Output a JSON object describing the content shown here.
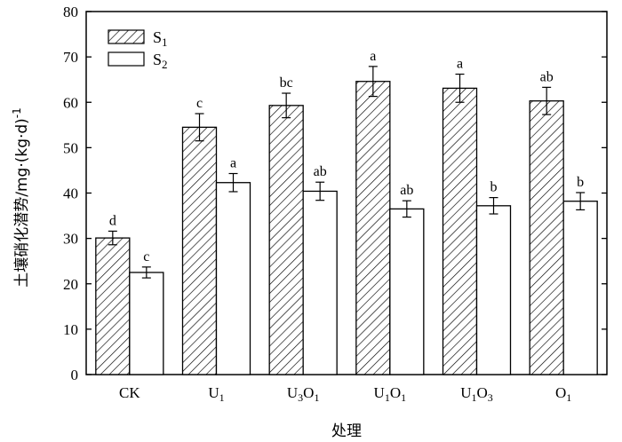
{
  "chart_data": {
    "type": "bar",
    "xlabel": "处理",
    "ylabel": "土壤硝化潜势/mg·(kg·d)",
    "ylabel_superscript": "-1",
    "ylim": [
      0,
      80
    ],
    "yticks": [
      "0",
      "10",
      "20",
      "30",
      "40",
      "50",
      "60",
      "70",
      "80"
    ],
    "grid": false,
    "legend_position": "top-left",
    "categories": [
      {
        "base": "CK",
        "parts": [
          [
            "CK",
            ""
          ]
        ]
      },
      {
        "base": "U1",
        "parts": [
          [
            "U",
            "1"
          ]
        ]
      },
      {
        "base": "U3O1",
        "parts": [
          [
            "U",
            "3"
          ],
          [
            "O",
            "1"
          ]
        ]
      },
      {
        "base": "U1O1",
        "parts": [
          [
            "U",
            "1"
          ],
          [
            "O",
            "1"
          ]
        ]
      },
      {
        "base": "U1O3",
        "parts": [
          [
            "U",
            "1"
          ],
          [
            "O",
            "3"
          ]
        ]
      },
      {
        "base": "O1",
        "parts": [
          [
            "O",
            "1"
          ]
        ]
      }
    ],
    "series": [
      {
        "name": "S1",
        "name_base": "S",
        "name_sub": "1",
        "fill": "hatched",
        "values": [
          30.1,
          54.5,
          59.3,
          64.6,
          63.1,
          60.3
        ],
        "errors": [
          1.5,
          3.0,
          2.7,
          3.3,
          3.1,
          3.0
        ],
        "labels": [
          "d",
          "c",
          "bc",
          "a",
          "a",
          "ab"
        ]
      },
      {
        "name": "S2",
        "name_base": "S",
        "name_sub": "2",
        "fill": "white",
        "values": [
          22.5,
          42.3,
          40.4,
          36.5,
          37.2,
          38.2
        ],
        "errors": [
          1.2,
          2.0,
          2.0,
          1.8,
          1.8,
          1.9
        ],
        "labels": [
          "c",
          "a",
          "ab",
          "ab",
          "b",
          "b"
        ]
      }
    ]
  }
}
